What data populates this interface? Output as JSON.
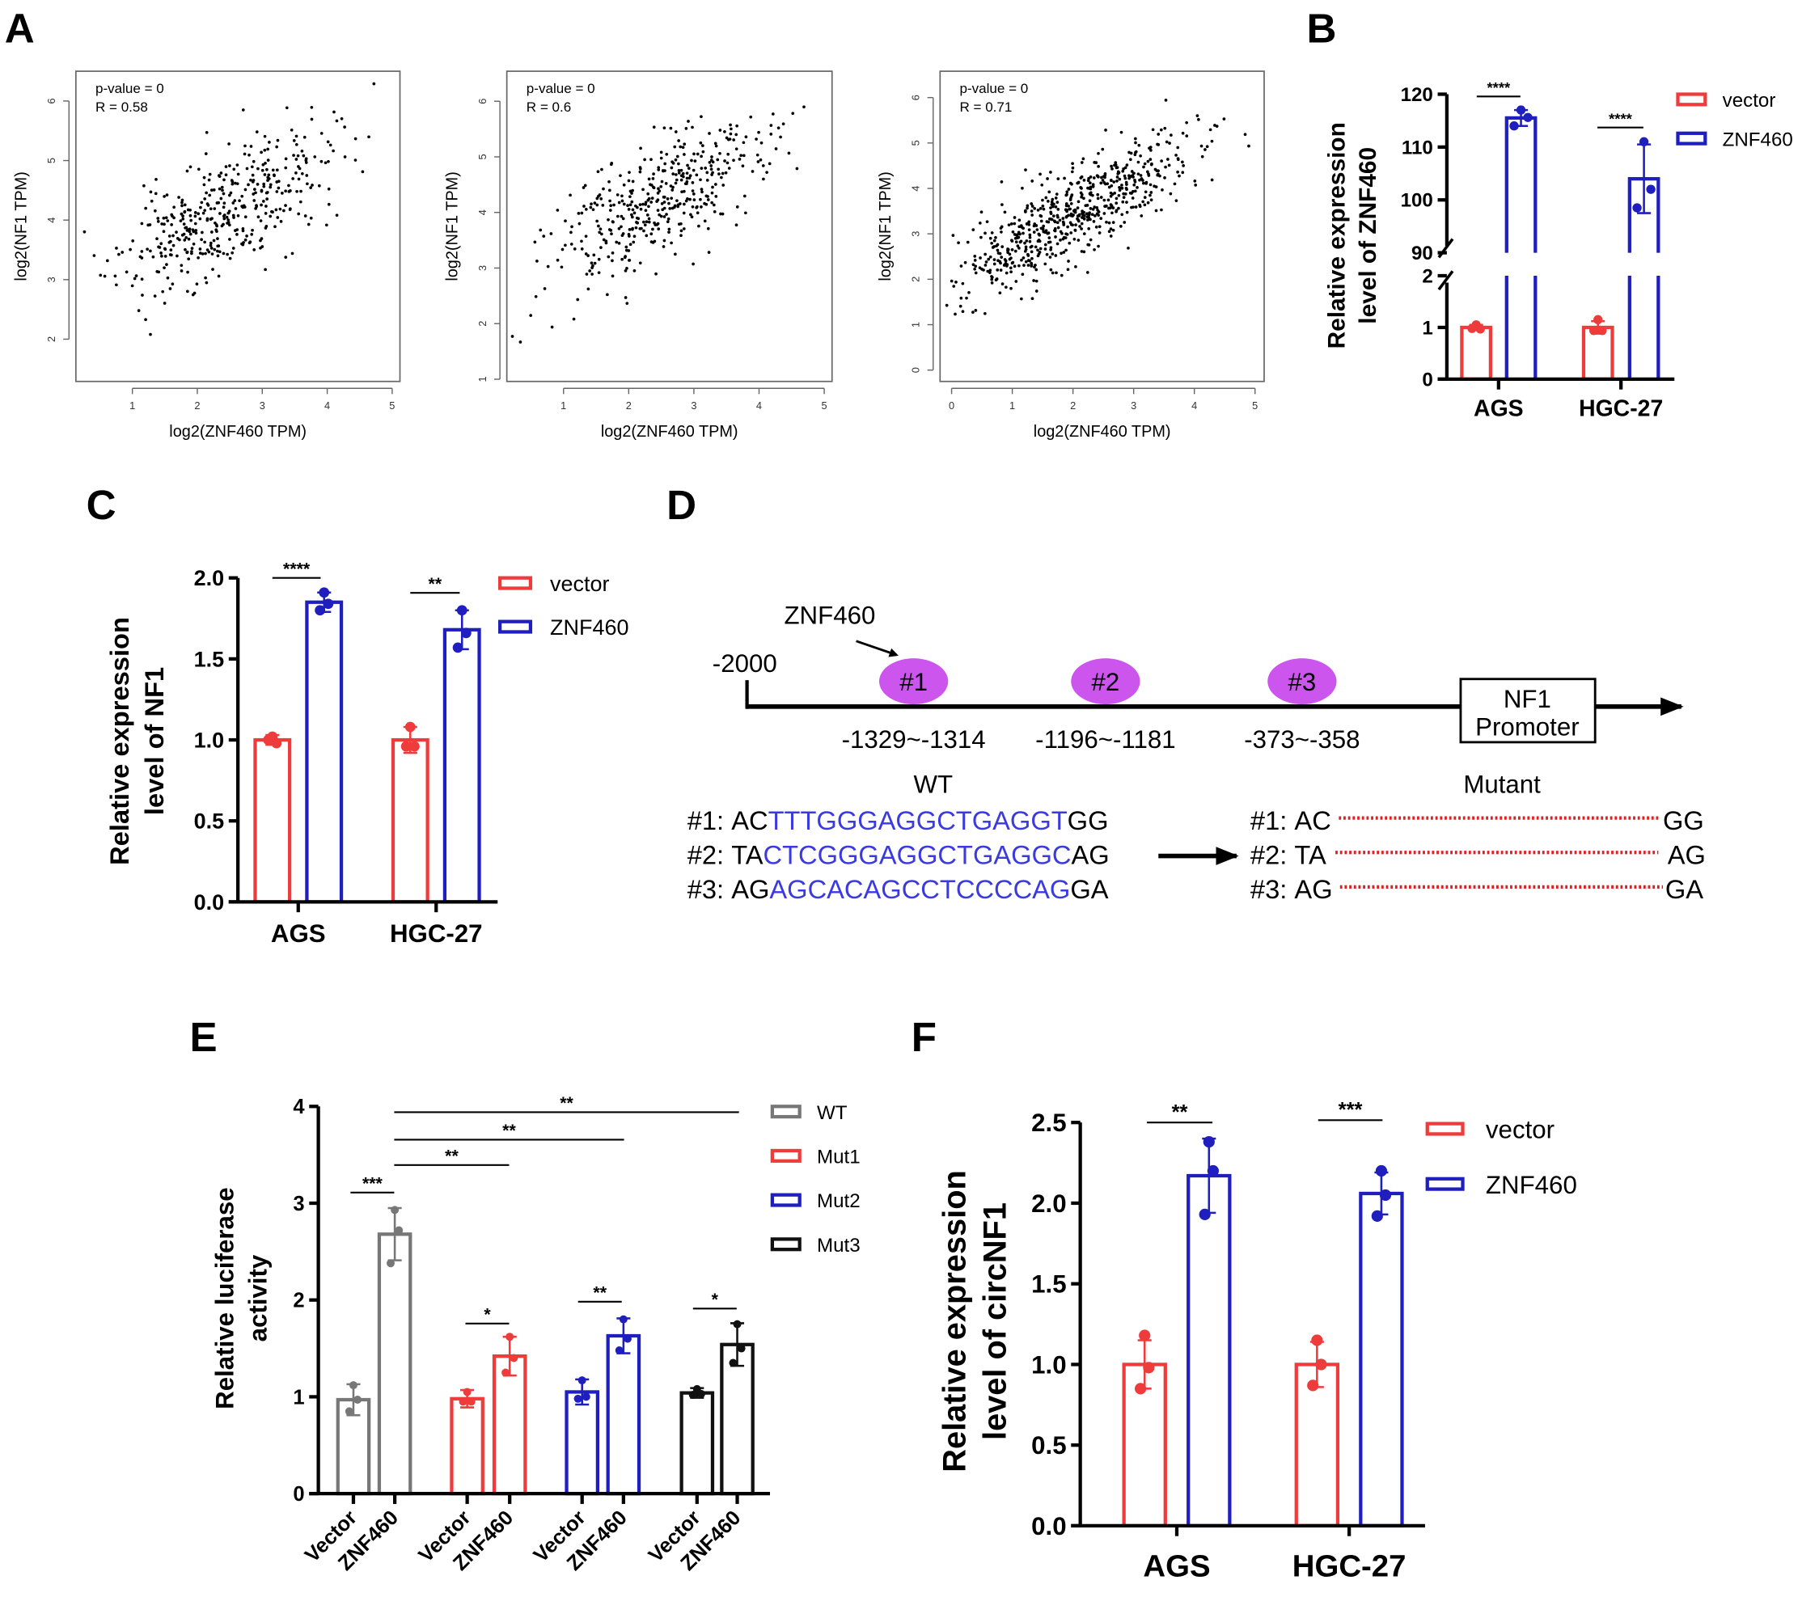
{
  "panel_labels": {
    "A": "A",
    "B": "B",
    "C": "C",
    "D": "D",
    "E": "E",
    "F": "F"
  },
  "chart_data": [
    {
      "id": "A1",
      "type": "scatter",
      "annotation": [
        "p-value = 0",
        "R = 0.58"
      ],
      "xlabel": "log2(ZNF460 TPM)",
      "ylabel": "log2(NF1 TPM)",
      "xticks": [
        1,
        2,
        3,
        4,
        5
      ],
      "yticks": [
        2,
        3,
        4,
        5,
        6
      ],
      "xlim": [
        0.13,
        5.12
      ],
      "ylim": [
        1.29,
        6.5
      ],
      "n": 420,
      "x_mean": 2.4,
      "x_sd": 0.8,
      "intercept": 2.8,
      "slope": 0.55,
      "noise_sd": 0.5,
      "seed": 11
    },
    {
      "id": "A2",
      "type": "scatter",
      "annotation": [
        "p-value = 0",
        "R = 0.6"
      ],
      "xlabel": "log2(ZNF460 TPM)",
      "ylabel": "log2(NF1 TPM)",
      "xticks": [
        1,
        2,
        3,
        4,
        5
      ],
      "yticks": [
        1,
        2,
        3,
        4,
        5,
        6
      ],
      "xlim": [
        0.13,
        5.12
      ],
      "ylim": [
        0.96,
        6.54
      ],
      "n": 420,
      "x_mean": 2.4,
      "x_sd": 0.8,
      "intercept": 2.7,
      "slope": 0.6,
      "noise_sd": 0.55,
      "seed": 23
    },
    {
      "id": "A3",
      "type": "scatter",
      "annotation": [
        "p-value = 0",
        "R = 0.71"
      ],
      "xlabel": "log2(ZNF460 TPM)",
      "ylabel": "log2(NF1 TPM)",
      "xticks": [
        0,
        1,
        2,
        3,
        4,
        5
      ],
      "yticks": [
        0,
        1,
        2,
        3,
        4,
        5,
        6
      ],
      "xlim": [
        -0.19,
        5.15
      ],
      "ylim": [
        -0.25,
        6.58
      ],
      "n": 650,
      "x_mean": 2.0,
      "x_sd": 1.0,
      "intercept": 2.0,
      "slope": 0.72,
      "noise_sd": 0.5,
      "seed": 37
    },
    {
      "id": "B",
      "type": "bar",
      "ylabel": [
        "Relative expression",
        "level of ZNF460"
      ],
      "categories": [
        "AGS",
        "HGC-27"
      ],
      "yticks": [
        "0",
        "1",
        "2",
        "90",
        "100",
        "110",
        "120"
      ],
      "ytick_values": [
        0,
        1,
        2,
        90,
        100,
        110,
        120
      ],
      "ylim": [
        0,
        120
      ],
      "axis_break": [
        2,
        90
      ],
      "series": [
        {
          "name": "vector",
          "color": "#ee3b3b",
          "values": [
            1.0,
            1.0
          ],
          "sd": [
            0.05,
            0.12
          ],
          "points": [
            [
              1.05,
              0.97,
              0.98
            ],
            [
              1.15,
              0.94,
              0.94
            ]
          ]
        },
        {
          "name": "ZNF460",
          "color": "#1f1fbf",
          "values": [
            115.5,
            104
          ],
          "sd": [
            1.5,
            6.5
          ],
          "points": [
            [
              117,
              115.6,
              114
            ],
            [
              111,
              102,
              98.5
            ]
          ]
        }
      ],
      "significance": [
        {
          "label": "****"
        },
        {
          "label": "****"
        }
      ]
    },
    {
      "id": "C",
      "type": "bar",
      "ylabel": [
        "Relative expression",
        "level of NF1"
      ],
      "categories": [
        "AGS",
        "HGC-27"
      ],
      "yticks": [
        "0.0",
        "0.5",
        "1.0",
        "1.5",
        "2.0"
      ],
      "ytick_values": [
        0,
        0.5,
        1,
        1.5,
        2
      ],
      "ylim": [
        0,
        2
      ],
      "series": [
        {
          "name": "vector",
          "color": "#ee3b3b",
          "values": [
            1.0,
            1.0
          ],
          "sd": [
            0.03,
            0.08
          ],
          "points": [
            [
              1.02,
              0.98,
              1.0
            ],
            [
              1.08,
              0.96,
              0.96
            ]
          ]
        },
        {
          "name": "ZNF460",
          "color": "#1f1fbf",
          "values": [
            1.85,
            1.68
          ],
          "sd": [
            0.06,
            0.12
          ],
          "points": [
            [
              1.91,
              1.84,
              1.8
            ],
            [
              1.8,
              1.66,
              1.57
            ]
          ]
        }
      ],
      "significance": [
        {
          "label": "****"
        },
        {
          "label": "**"
        }
      ]
    },
    {
      "id": "E",
      "type": "bar",
      "ylabel": [
        "Relative luciferase",
        "activity"
      ],
      "categories": [
        "WT",
        "Mut1",
        "Mut2",
        "Mut3"
      ],
      "category_colors": [
        "#777777",
        "#ee3b3b",
        "#1f1fbf",
        "#111111"
      ],
      "xlabels": [
        "Vector",
        "ZNF460"
      ],
      "yticks": [
        "0",
        "1",
        "2",
        "3",
        "4"
      ],
      "ytick_values": [
        0,
        1,
        2,
        3,
        4
      ],
      "ylim": [
        0,
        4
      ],
      "series": [
        {
          "name": "Vector",
          "values": [
            0.97,
            0.98,
            1.05,
            1.04
          ],
          "sd": [
            0.16,
            0.09,
            0.13,
            0.05
          ],
          "points": [
            [
              1.12,
              0.97,
              0.85
            ],
            [
              1.05,
              0.95,
              0.95
            ],
            [
              1.17,
              1.0,
              0.98
            ],
            [
              1.08,
              1.03,
              1.02
            ]
          ]
        },
        {
          "name": "ZNF460",
          "values": [
            2.68,
            1.42,
            1.63,
            1.54
          ],
          "sd": [
            0.27,
            0.2,
            0.18,
            0.22
          ],
          "points": [
            [
              2.93,
              2.72,
              2.38
            ],
            [
              1.62,
              1.4,
              1.25
            ],
            [
              1.8,
              1.6,
              1.48
            ],
            [
              1.75,
              1.5,
              1.35
            ]
          ]
        }
      ],
      "legend": [
        "WT",
        "Mut1",
        "Mut2",
        "Mut3"
      ],
      "significance": [
        {
          "label": "***"
        },
        {
          "label": "*"
        },
        {
          "label": "**"
        },
        {
          "label": "*"
        },
        {
          "label": "**"
        },
        {
          "label": "**"
        },
        {
          "label": "**"
        }
      ]
    },
    {
      "id": "F",
      "type": "bar",
      "ylabel": [
        "Relative expression",
        "level of circNF1"
      ],
      "categories": [
        "AGS",
        "HGC-27"
      ],
      "yticks": [
        "0.0",
        "0.5",
        "1.0",
        "1.5",
        "2.0",
        "2.5"
      ],
      "ytick_values": [
        0,
        0.5,
        1,
        1.5,
        2,
        2.5
      ],
      "ylim": [
        0,
        2.5
      ],
      "series": [
        {
          "name": "vector",
          "color": "#ee3b3b",
          "values": [
            1.0,
            1.0
          ],
          "sd": [
            0.15,
            0.14
          ],
          "points": [
            [
              1.18,
              0.98,
              0.85
            ],
            [
              1.15,
              1.0,
              0.87
            ]
          ]
        },
        {
          "name": "ZNF460",
          "color": "#1f1fbf",
          "values": [
            2.17,
            2.06
          ],
          "sd": [
            0.23,
            0.13
          ],
          "points": [
            [
              2.38,
              2.2,
              1.93
            ],
            [
              2.2,
              2.05,
              1.92
            ]
          ]
        }
      ],
      "significance": [
        {
          "label": "**"
        },
        {
          "label": "***"
        }
      ]
    }
  ],
  "diagram": {
    "tf_label": "ZNF460",
    "start_label": "-2000",
    "sites": [
      {
        "label": "#1",
        "range": "-1329~-1314"
      },
      {
        "label": "#2",
        "range": "-1196~-1181"
      },
      {
        "label": "#3",
        "range": "-373~-358"
      }
    ],
    "promoter": [
      "NF1",
      "Promoter"
    ],
    "site_color": "#cc55ee",
    "wt_title": "WT",
    "mutant_title": "Mutant",
    "wt": [
      {
        "id": "#1: ",
        "flank5": "AC",
        "site": "TTTGGGAGGCTGAGGT",
        "flank3": "GG"
      },
      {
        "id": "#2: ",
        "flank5": "TA",
        "site": "CTCGGGAGGCTGAGGC",
        "flank3": "AG"
      },
      {
        "id": "#3: ",
        "flank5": "AG",
        "site": "AGCACAGCCTCCCCAG",
        "flank3": "GA"
      }
    ],
    "mutant": [
      {
        "id": "#1: ",
        "flank5": "AC",
        "flank3": "GG"
      },
      {
        "id": "#2: ",
        "flank5": "TA",
        "flank3": "AG"
      },
      {
        "id": "#3: ",
        "flank5": "AG",
        "flank3": "GA"
      }
    ]
  }
}
